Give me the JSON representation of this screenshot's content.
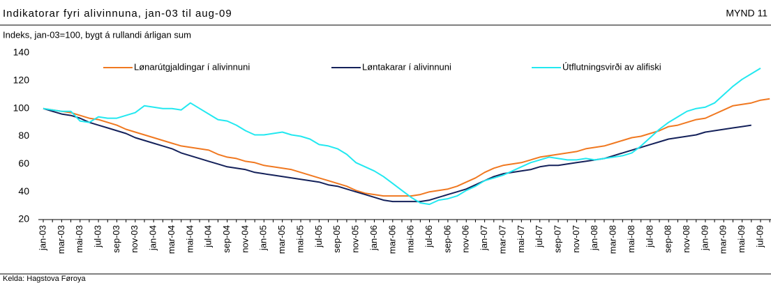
{
  "chart_data": {
    "type": "line",
    "title": "Indikatorar fyri alivinnuna, jan-03 til aug-09",
    "figure_label": "MYND 11",
    "subtitle": "Indeks, jan-03=100, bygt á rullandi árligan sum",
    "source": "Kelda: Hagstova Føroya",
    "categories": [
      "jan-03",
      null,
      "mar-03",
      null,
      "mai-03",
      null,
      "jul-03",
      null,
      "sep-03",
      null,
      "nov-03",
      null,
      "jan-04",
      null,
      "mar-04",
      null,
      "mai-04",
      null,
      "jul-04",
      null,
      "sep-04",
      null,
      "nov-04",
      null,
      "jan-05",
      null,
      "mar-05",
      null,
      "mai-05",
      null,
      "jul-05",
      null,
      "sep-05",
      null,
      "nov-05",
      null,
      "jan-06",
      null,
      "mar-06",
      null,
      "mai-06",
      null,
      "jul-06",
      null,
      "sep-06",
      null,
      "nov-06",
      null,
      "jan-07",
      null,
      "mar-07",
      null,
      "mai-07",
      null,
      "jul-07",
      null,
      "sep-07",
      null,
      "nov-07",
      null,
      "jan-08",
      null,
      "mar-08",
      null,
      "mai-08",
      null,
      "jul-08",
      null,
      "sep-08",
      null,
      "nov-08",
      null,
      "jan-09",
      null,
      "mar-09",
      null,
      "mai-09",
      null,
      "jul-09",
      null
    ],
    "series": [
      {
        "name": "Lønarútgjaldingar í alivinnuni",
        "color": "#f07820",
        "values": [
          100,
          99,
          98,
          97,
          95,
          93,
          92,
          90,
          88,
          85,
          83,
          81,
          79,
          77,
          75,
          73,
          72,
          71,
          70,
          67,
          65,
          64,
          62,
          61,
          59,
          58,
          57,
          56,
          54,
          52,
          50,
          48,
          46,
          44,
          41,
          39,
          38,
          37,
          37,
          37,
          37,
          38,
          40,
          41,
          42,
          44,
          47,
          50,
          54,
          57,
          59,
          60,
          61,
          63,
          65,
          66,
          67,
          68,
          69,
          71,
          72,
          73,
          75,
          77,
          79,
          80,
          82,
          84,
          87,
          88,
          90,
          92,
          93,
          96,
          99,
          102,
          103,
          104,
          106,
          107
        ]
      },
      {
        "name": "Løntakarar í alivinnuni",
        "color": "#14215a",
        "values": [
          100,
          98,
          96,
          95,
          93,
          90,
          88,
          86,
          84,
          82,
          79,
          77,
          75,
          73,
          71,
          68,
          66,
          64,
          62,
          60,
          58,
          57,
          56,
          54,
          53,
          52,
          51,
          50,
          49,
          48,
          47,
          45,
          44,
          42,
          40,
          38,
          36,
          34,
          33,
          33,
          33,
          33,
          34,
          36,
          38,
          40,
          42,
          45,
          48,
          51,
          53,
          54,
          55,
          56,
          58,
          59,
          59,
          60,
          61,
          62,
          63,
          64,
          66,
          68,
          70,
          72,
          74,
          76,
          78,
          79,
          80,
          81,
          83,
          84,
          85,
          86,
          87,
          88,
          null,
          null
        ]
      },
      {
        "name": "Útflutningsvirði av alifiski",
        "color": "#22e8f0",
        "values": [
          100,
          99,
          98,
          98,
          91,
          90,
          94,
          93,
          93,
          95,
          97,
          102,
          101,
          100,
          100,
          99,
          104,
          100,
          96,
          92,
          91,
          88,
          84,
          81,
          81,
          82,
          83,
          81,
          80,
          78,
          74,
          73,
          71,
          67,
          61,
          58,
          55,
          51,
          46,
          41,
          36,
          32,
          31,
          34,
          35,
          37,
          41,
          44,
          48,
          50,
          52,
          55,
          58,
          61,
          63,
          65,
          64,
          63,
          63,
          64,
          63,
          64,
          65,
          66,
          68,
          73,
          79,
          85,
          90,
          94,
          98,
          100,
          101,
          104,
          110,
          116,
          121,
          125,
          129,
          null
        ]
      }
    ],
    "ylim": [
      20,
      140
    ],
    "yticks": [
      20,
      40,
      60,
      80,
      100,
      120,
      140
    ],
    "grid": false
  }
}
